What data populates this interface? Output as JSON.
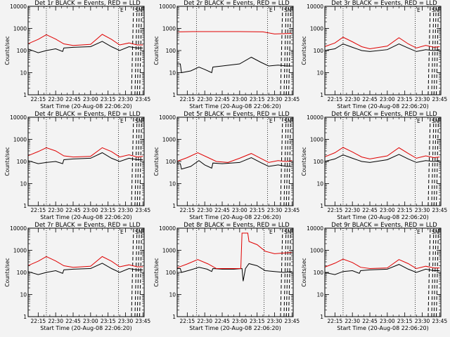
{
  "chart_data": [
    {
      "type": "line",
      "title": "Det 1r BLACK = Events, RED = LLD",
      "xlabel": "Start Time (20-Aug-08 22:06:20)",
      "ylabel": "Counts/sec",
      "x_ticks": [
        "22:15",
        "22:30",
        "22:45",
        "23:00",
        "23:15",
        "23:30",
        "23:45"
      ],
      "y_ticks": [
        "1",
        "10",
        "100",
        "1000",
        "10000"
      ],
      "y_scale": "log",
      "ylim": [
        1,
        10000
      ],
      "xlim": [
        "22:06:20",
        "23:46:00"
      ],
      "corner_labels": [
        "E",
        "SN"
      ],
      "series": [
        {
          "color": "#000000",
          "x": [
            "22:06",
            "22:15",
            "22:22",
            "22:30",
            "22:36",
            "22:37",
            "22:45",
            "23:00",
            "23:10",
            "23:18",
            "23:25",
            "23:33",
            "23:40",
            "23:45"
          ],
          "y": [
            120,
            80,
            100,
            120,
            90,
            130,
            140,
            150,
            260,
            150,
            100,
            150,
            130,
            130
          ]
        },
        {
          "color": "#e00000",
          "x": [
            "22:06",
            "22:15",
            "22:22",
            "22:30",
            "22:37",
            "22:45",
            "23:00",
            "23:10",
            "23:18",
            "23:25",
            "23:33",
            "23:40",
            "23:45"
          ],
          "y": [
            200,
            320,
            520,
            330,
            200,
            170,
            190,
            540,
            320,
            180,
            220,
            180,
            180
          ]
        }
      ],
      "vertical_dotted_lines": [
        "22:22",
        "23:24"
      ],
      "vertical_dashed_lines": [
        "23:36",
        "23:39",
        "23:41",
        "23:43"
      ]
    },
    {
      "type": "line",
      "title": "Det 2r BLACK = Events, RED = LLD",
      "xlabel": "Start Time (20-Aug-08 22:06:20)",
      "ylabel": "Counts/sec",
      "x_ticks": [
        "22:15",
        "22:30",
        "22:45",
        "23:00",
        "23:15",
        "23:30",
        "23:45"
      ],
      "y_ticks": [
        "1",
        "10",
        "100",
        "1000",
        "10000"
      ],
      "y_scale": "log",
      "ylim": [
        1,
        10000
      ],
      "xlim": [
        "22:06:20",
        "23:46:00"
      ],
      "corner_labels": [
        "E",
        "SN"
      ],
      "series": [
        {
          "color": "#000000",
          "x": [
            "22:06",
            "22:09",
            "22:10",
            "22:18",
            "22:25",
            "22:30",
            "22:36",
            "22:37",
            "22:45",
            "23:00",
            "23:10",
            "23:18",
            "23:25",
            "23:33",
            "23:40",
            "23:45"
          ],
          "y": [
            25,
            25,
            10,
            12,
            18,
            14,
            10,
            18,
            20,
            25,
            50,
            30,
            20,
            22,
            20,
            20
          ]
        },
        {
          "color": "#e00000",
          "x": [
            "22:06",
            "22:20",
            "22:40",
            "23:00",
            "23:20",
            "23:30",
            "23:45"
          ],
          "y": [
            700,
            720,
            720,
            720,
            700,
            560,
            600
          ]
        }
      ],
      "vertical_dotted_lines": [
        "22:23",
        "23:24"
      ],
      "vertical_dashed_lines": [
        "23:36",
        "23:39",
        "23:41",
        "23:43"
      ]
    },
    {
      "type": "line",
      "title": "Det 3r BLACK = Events, RED = LLD",
      "xlabel": "Start Time (20-Aug-08 22:06:20)",
      "ylabel": "Counts/sec",
      "x_ticks": [
        "22:15",
        "22:30",
        "22:45",
        "23:00",
        "23:15",
        "23:30",
        "23:45"
      ],
      "y_ticks": [
        "1",
        "10",
        "100",
        "1000",
        "10000"
      ],
      "y_scale": "log",
      "ylim": [
        1,
        10000
      ],
      "xlim": [
        "22:06:20",
        "23:46:00"
      ],
      "corner_labels": [
        "E",
        "SN"
      ],
      "series": [
        {
          "color": "#000000",
          "x": [
            "22:06",
            "22:15",
            "22:22",
            "22:30",
            "22:38",
            "22:45",
            "23:00",
            "23:10",
            "23:18",
            "23:25",
            "23:33",
            "23:40",
            "23:45"
          ],
          "y": [
            100,
            120,
            200,
            140,
            100,
            90,
            110,
            200,
            130,
            90,
            110,
            100,
            110
          ]
        },
        {
          "color": "#e00000",
          "x": [
            "22:06",
            "22:15",
            "22:22",
            "22:30",
            "22:38",
            "22:45",
            "23:00",
            "23:10",
            "23:18",
            "23:25",
            "23:33",
            "23:40",
            "23:45"
          ],
          "y": [
            150,
            220,
            400,
            250,
            150,
            120,
            160,
            380,
            200,
            130,
            170,
            140,
            150
          ]
        }
      ],
      "vertical_dotted_lines": [
        "22:22",
        "23:24"
      ],
      "vertical_dashed_lines": [
        "23:36",
        "23:39",
        "23:41",
        "23:43"
      ]
    },
    {
      "type": "line",
      "title": "Det 4r BLACK = Events, RED = LLD",
      "xlabel": "Start Time (20-Aug-08 22:06:20)",
      "ylabel": "Counts/sec",
      "x_ticks": [
        "22:15",
        "22:30",
        "22:45",
        "23:00",
        "23:15",
        "23:30",
        "23:45"
      ],
      "y_ticks": [
        "1",
        "10",
        "100",
        "1000",
        "10000"
      ],
      "y_scale": "log",
      "ylim": [
        1,
        10000
      ],
      "xlim": [
        "22:06:20",
        "23:46:00"
      ],
      "corner_labels": [
        "E",
        "SN"
      ],
      "series": [
        {
          "color": "#000000",
          "x": [
            "22:06",
            "22:15",
            "22:22",
            "22:30",
            "22:36",
            "22:37",
            "22:45",
            "23:00",
            "23:10",
            "23:18",
            "23:25",
            "23:33",
            "23:40",
            "23:45"
          ],
          "y": [
            110,
            80,
            90,
            100,
            80,
            120,
            130,
            140,
            250,
            140,
            100,
            140,
            120,
            120
          ]
        },
        {
          "color": "#e00000",
          "x": [
            "22:06",
            "22:15",
            "22:22",
            "22:30",
            "22:37",
            "22:45",
            "23:00",
            "23:10",
            "23:18",
            "23:25",
            "23:33",
            "23:40",
            "23:45"
          ],
          "y": [
            180,
            280,
            420,
            300,
            180,
            160,
            170,
            420,
            280,
            160,
            200,
            160,
            170
          ]
        }
      ],
      "vertical_dotted_lines": [
        "22:22",
        "23:24"
      ],
      "vertical_dashed_lines": [
        "23:36",
        "23:39",
        "23:41",
        "23:43"
      ]
    },
    {
      "type": "line",
      "title": "Det 5r BLACK = Events, RED = LLD",
      "xlabel": "Start Time (20-Aug-08 22:06:20)",
      "ylabel": "Counts/sec",
      "x_ticks": [
        "22:15",
        "22:30",
        "22:45",
        "23:00",
        "23:15",
        "23:30",
        "23:45"
      ],
      "y_ticks": [
        "1",
        "10",
        "100",
        "1000",
        "10000"
      ],
      "y_scale": "log",
      "ylim": [
        1,
        10000
      ],
      "xlim": [
        "22:06:20",
        "23:46:00"
      ],
      "corner_labels": [
        "E",
        "SN"
      ],
      "series": [
        {
          "color": "#000000",
          "x": [
            "22:06",
            "22:09",
            "22:10",
            "22:18",
            "22:25",
            "22:30",
            "22:36",
            "22:37",
            "22:45",
            "23:00",
            "23:10",
            "23:18",
            "23:25",
            "23:33",
            "23:40",
            "23:45"
          ],
          "y": [
            80,
            80,
            45,
            60,
            110,
            70,
            50,
            85,
            80,
            90,
            150,
            90,
            60,
            70,
            60,
            60
          ]
        },
        {
          "color": "#e00000",
          "x": [
            "22:06",
            "22:15",
            "22:24",
            "22:33",
            "22:40",
            "22:50",
            "23:00",
            "23:10",
            "23:18",
            "23:25",
            "23:33",
            "23:40",
            "23:45"
          ],
          "y": [
            100,
            150,
            250,
            150,
            100,
            90,
            140,
            230,
            140,
            90,
            110,
            100,
            110
          ]
        }
      ],
      "vertical_dotted_lines": [
        "22:23",
        "23:24"
      ],
      "vertical_dashed_lines": [
        "23:36",
        "23:39",
        "23:41",
        "23:43"
      ]
    },
    {
      "type": "line",
      "title": "Det 6r BLACK = Events, RED = LLD",
      "xlabel": "Start Time (20-Aug-08 22:06:20)",
      "ylabel": "Counts/sec",
      "x_ticks": [
        "22:15",
        "22:30",
        "22:45",
        "23:00",
        "23:15",
        "23:30",
        "23:45"
      ],
      "y_ticks": [
        "1",
        "10",
        "100",
        "1000",
        "10000"
      ],
      "y_scale": "log",
      "ylim": [
        1,
        10000
      ],
      "xlim": [
        "22:06:20",
        "23:46:00"
      ],
      "corner_labels": [
        "E",
        "SN"
      ],
      "series": [
        {
          "color": "#000000",
          "x": [
            "22:06",
            "22:15",
            "22:22",
            "22:30",
            "22:38",
            "22:45",
            "23:00",
            "23:10",
            "23:18",
            "23:25",
            "23:33",
            "23:40",
            "23:45"
          ],
          "y": [
            100,
            130,
            200,
            140,
            100,
            90,
            120,
            210,
            130,
            90,
            110,
            100,
            110
          ]
        },
        {
          "color": "#e00000",
          "x": [
            "22:06",
            "22:15",
            "22:22",
            "22:30",
            "22:38",
            "22:45",
            "23:00",
            "23:10",
            "23:18",
            "23:25",
            "23:33",
            "23:40",
            "23:45"
          ],
          "y": [
            160,
            250,
            430,
            270,
            160,
            130,
            180,
            420,
            230,
            140,
            180,
            150,
            160
          ]
        }
      ],
      "vertical_dotted_lines": [
        "22:22",
        "23:24"
      ],
      "vertical_dashed_lines": [
        "23:36",
        "23:39",
        "23:41",
        "23:43"
      ]
    },
    {
      "type": "line",
      "title": "Det 7r BLACK = Events, RED = LLD",
      "xlabel": "Start Time (20-Aug-08 22:06:20)",
      "ylabel": "Counts/sec",
      "x_ticks": [
        "22:15",
        "22:30",
        "22:45",
        "23:00",
        "23:15",
        "23:30",
        "23:45"
      ],
      "y_ticks": [
        "1",
        "10",
        "100",
        "1000",
        "10000"
      ],
      "y_scale": "log",
      "ylim": [
        1,
        10000
      ],
      "xlim": [
        "22:06:20",
        "23:46:00"
      ],
      "corner_labels": [
        "E",
        "SN"
      ],
      "series": [
        {
          "color": "#000000",
          "x": [
            "22:06",
            "22:15",
            "22:22",
            "22:30",
            "22:36",
            "22:37",
            "22:45",
            "23:00",
            "23:10",
            "23:18",
            "23:25",
            "23:33",
            "23:40",
            "23:45"
          ],
          "y": [
            110,
            80,
            100,
            120,
            90,
            130,
            140,
            150,
            260,
            150,
            100,
            150,
            130,
            130
          ]
        },
        {
          "color": "#e00000",
          "x": [
            "22:06",
            "22:15",
            "22:22",
            "22:30",
            "22:37",
            "22:45",
            "23:00",
            "23:10",
            "23:18",
            "23:25",
            "23:33",
            "23:40",
            "23:45"
          ],
          "y": [
            200,
            320,
            520,
            330,
            200,
            170,
            190,
            520,
            320,
            180,
            220,
            180,
            180
          ]
        }
      ],
      "vertical_dotted_lines": [
        "22:22",
        "23:24"
      ],
      "vertical_dashed_lines": [
        "23:36",
        "23:39",
        "23:41",
        "23:43"
      ]
    },
    {
      "type": "line",
      "title": "Det 8r BLACK = Events, RED = LLD",
      "xlabel": "Start Time (20-Aug-08 22:06:20)",
      "ylabel": "Counts/sec",
      "x_ticks": [
        "22:15",
        "22:30",
        "22:45",
        "23:00",
        "23:15",
        "23:30",
        "23:45"
      ],
      "y_ticks": [
        "1",
        "10",
        "100",
        "1000",
        "10000"
      ],
      "y_scale": "log",
      "ylim": [
        1,
        10000
      ],
      "xlim": [
        "22:06:20",
        "23:46:00"
      ],
      "corner_labels": [
        "E",
        "SN"
      ],
      "series": [
        {
          "color": "#000000",
          "x": [
            "22:06",
            "22:09",
            "22:10",
            "22:18",
            "22:25",
            "22:32",
            "22:36",
            "22:37",
            "22:45",
            "22:55",
            "23:02",
            "23:03",
            "23:05",
            "23:08",
            "23:15",
            "23:22",
            "23:30",
            "23:38",
            "23:45"
          ],
          "y": [
            150,
            150,
            100,
            130,
            170,
            140,
            110,
            150,
            140,
            140,
            150,
            40,
            150,
            250,
            200,
            120,
            110,
            100,
            110
          ]
        },
        {
          "color": "#e00000",
          "x": [
            "22:06",
            "22:15",
            "22:24",
            "22:33",
            "22:40",
            "22:50",
            "23:01",
            "23:02",
            "23:07",
            "23:08",
            "23:15",
            "23:22",
            "23:30",
            "23:38",
            "23:45"
          ],
          "y": [
            160,
            240,
            380,
            240,
            150,
            150,
            150,
            6000,
            6000,
            2500,
            1800,
            900,
            700,
            750,
            800
          ]
        }
      ],
      "vertical_dotted_lines": [
        "22:23",
        "23:21"
      ],
      "vertical_dashed_lines": [
        "23:36",
        "23:39",
        "23:41",
        "23:43"
      ]
    },
    {
      "type": "line",
      "title": "Det 9r BLACK = Events, RED = LLD",
      "xlabel": "Start Time (20-Aug-08 22:06:20)",
      "ylabel": "Counts/sec",
      "x_ticks": [
        "22:15",
        "22:30",
        "22:45",
        "23:00",
        "23:15",
        "23:30",
        "23:45"
      ],
      "y_ticks": [
        "1",
        "10",
        "100",
        "1000",
        "10000"
      ],
      "y_scale": "log",
      "ylim": [
        1,
        10000
      ],
      "xlim": [
        "22:06:20",
        "23:46:00"
      ],
      "corner_labels": [
        "E",
        "SN"
      ],
      "series": [
        {
          "color": "#000000",
          "x": [
            "22:06",
            "22:15",
            "22:22",
            "22:30",
            "22:36",
            "22:37",
            "22:45",
            "23:00",
            "23:10",
            "23:18",
            "23:25",
            "23:33",
            "23:40",
            "23:45"
          ],
          "y": [
            100,
            80,
            110,
            120,
            90,
            120,
            130,
            140,
            230,
            140,
            100,
            140,
            120,
            120
          ]
        },
        {
          "color": "#e00000",
          "x": [
            "22:06",
            "22:15",
            "22:22",
            "22:30",
            "22:37",
            "22:45",
            "23:00",
            "23:10",
            "23:18",
            "23:25",
            "23:33",
            "23:40",
            "23:45"
          ],
          "y": [
            170,
            260,
            400,
            280,
            170,
            150,
            160,
            380,
            250,
            150,
            190,
            160,
            160
          ]
        }
      ],
      "vertical_dotted_lines": [
        "22:22",
        "23:24"
      ],
      "vertical_dashed_lines": [
        "23:36",
        "23:39",
        "23:41",
        "23:43"
      ]
    }
  ]
}
